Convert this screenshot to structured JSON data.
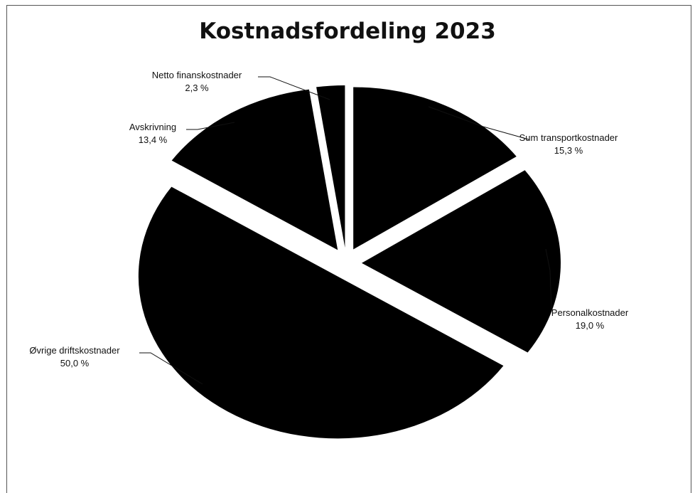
{
  "chart_data": {
    "type": "pie",
    "title": "Kostnadsfordeling 2023",
    "exploded": true,
    "slice_color": "#000000",
    "categories": [
      "Sum transportkostnader",
      "Personalkostnader",
      "Øvrige driftskostnader",
      "Avskrivning",
      "Netto finanskostnader"
    ],
    "values": [
      15.3,
      19.0,
      50.0,
      13.4,
      2.3
    ],
    "value_labels": [
      "15,3 %",
      "19,0 %",
      "50,0 %",
      "13,4 %",
      "2,3 %"
    ]
  }
}
